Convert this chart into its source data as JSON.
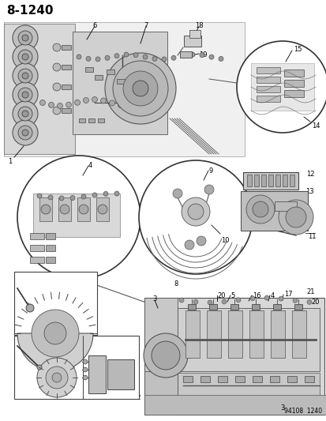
{
  "title": "8-1240",
  "bg": "#ffffff",
  "fw": 4.14,
  "fh": 5.33,
  "dpi": 100,
  "stamp": "94108  1240",
  "gray_light": "#e8e8e8",
  "gray_mid": "#c8c8c8",
  "gray_dark": "#888888",
  "edge": "#333333",
  "white": "#ffffff",
  "black": "#000000"
}
